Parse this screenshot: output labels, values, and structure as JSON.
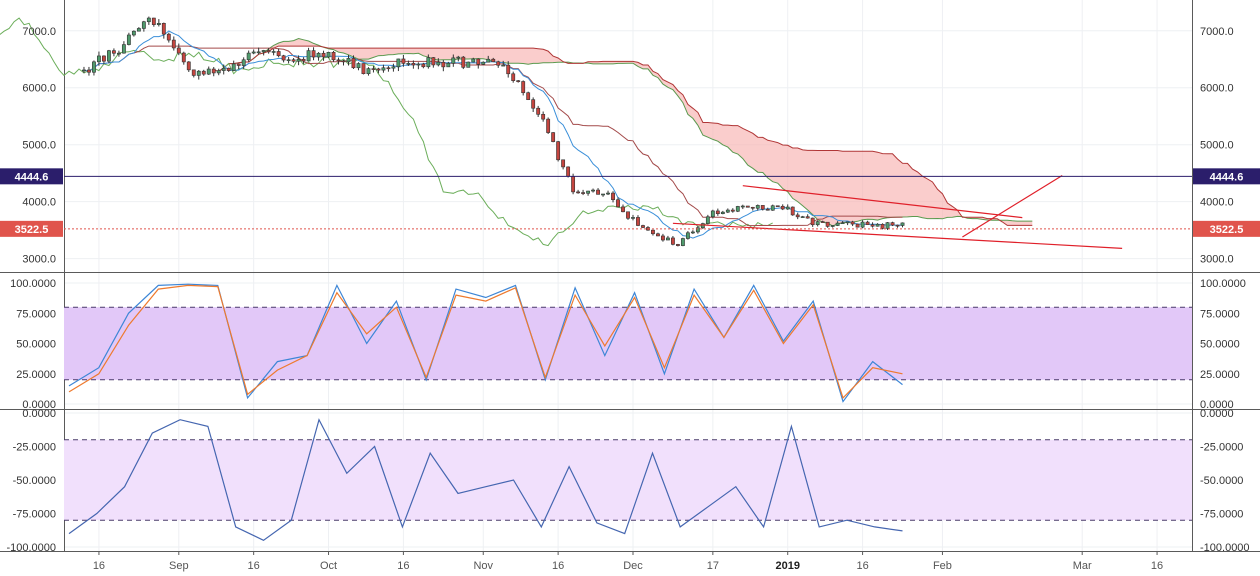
{
  "chart_data": [
    {
      "type": "candlestick",
      "panel": "price",
      "ylim": [
        2800,
        7400
      ],
      "yticks": [
        "7000.0",
        "6000.0",
        "5000.0",
        "4000.0",
        "3000.0"
      ],
      "ytick_values": [
        7000,
        6000,
        5000,
        4000,
        3000
      ],
      "price_labels": [
        {
          "label": "4444.6",
          "value": 4444.6,
          "color": "#2b1e6b",
          "style": "solid-line"
        },
        {
          "label": "3522.5",
          "value": 3522.5,
          "color": "#e0544c",
          "style": "dotted-line"
        }
      ],
      "ohlc_anchors": {
        "dates": [
          "2018-08-13",
          "2018-08-20",
          "2018-08-27",
          "2018-09-03",
          "2018-09-10",
          "2018-09-17",
          "2018-09-24",
          "2018-10-01",
          "2018-10-08",
          "2018-10-15",
          "2018-10-22",
          "2018-10-29",
          "2018-11-05",
          "2018-11-12",
          "2018-11-19",
          "2018-11-26",
          "2018-12-03",
          "2018-12-10",
          "2018-12-17",
          "2018-12-24",
          "2018-12-31",
          "2019-01-07",
          "2019-01-14",
          "2019-01-21"
        ],
        "close": [
          6300,
          6700,
          7200,
          6300,
          6350,
          6600,
          6550,
          6600,
          6300,
          6450,
          6450,
          6450,
          6400,
          5600,
          4200,
          4100,
          3500,
          3250,
          3800,
          3900,
          3900,
          3600,
          3600,
          3560
        ]
      },
      "colors": {
        "up": "#4f9a6c",
        "down": "#c4453f",
        "cloud_bear": "#f7b2b0",
        "cloud_bull": "#b3dbb3",
        "trendlines": "#e0202a"
      }
    },
    {
      "type": "line",
      "panel": "stochastic",
      "ylim": [
        0,
        100
      ],
      "yticks": [
        "100.0000",
        "75.0000",
        "50.0000",
        "25.0000",
        "0.0000"
      ],
      "ytick_values": [
        100,
        75,
        50,
        25,
        0
      ],
      "band": [
        20,
        80
      ],
      "band_color": "#e2c8f8",
      "series": [
        {
          "color": "#3d86d6",
          "values": [
            15,
            30,
            75,
            98,
            99,
            98,
            5,
            35,
            40,
            98,
            50,
            85,
            20,
            95,
            88,
            98,
            20,
            96,
            40,
            92,
            25,
            95,
            55,
            98,
            52,
            85,
            2,
            35,
            16
          ]
        },
        {
          "color": "#ee7a2e",
          "values": [
            10,
            25,
            65,
            95,
            98,
            97,
            8,
            28,
            40,
            92,
            58,
            80,
            22,
            90,
            85,
            96,
            22,
            90,
            48,
            88,
            30,
            90,
            55,
            94,
            50,
            82,
            5,
            30,
            25
          ]
        }
      ]
    },
    {
      "type": "line",
      "panel": "williams_r",
      "ylim": [
        -100,
        0
      ],
      "yticks": [
        "0.0000",
        "-25.0000",
        "-50.0000",
        "-75.0000",
        "-100.0000"
      ],
      "ytick_values": [
        0,
        -25,
        -50,
        -75,
        -100
      ],
      "band": [
        -80,
        -20
      ],
      "band_color": "#f1e0fc",
      "series": [
        {
          "color": "#4566b0",
          "values": [
            -90,
            -75,
            -55,
            -15,
            -5,
            -10,
            -85,
            -95,
            -80,
            -5,
            -45,
            -25,
            -85,
            -30,
            -60,
            -55,
            -50,
            -85,
            -40,
            -82,
            -90,
            -30,
            -85,
            -70,
            -55,
            -85,
            -10,
            -85,
            -80,
            -85,
            -88
          ]
        }
      ]
    }
  ],
  "x_axis": {
    "labels": [
      {
        "text": "16",
        "date": "2018-08-16"
      },
      {
        "text": "Sep",
        "date": "2018-09-01"
      },
      {
        "text": "16",
        "date": "2018-09-16"
      },
      {
        "text": "Oct",
        "date": "2018-10-01"
      },
      {
        "text": "16",
        "date": "2018-10-16"
      },
      {
        "text": "Nov",
        "date": "2018-11-01"
      },
      {
        "text": "16",
        "date": "2018-11-16"
      },
      {
        "text": "Dec",
        "date": "2018-12-01"
      },
      {
        "text": "17",
        "date": "2018-12-17"
      },
      {
        "text": "2019",
        "date": "2019-01-01",
        "bold": true
      },
      {
        "text": "16",
        "date": "2019-01-16"
      },
      {
        "text": "Feb",
        "date": "2019-02-01"
      },
      {
        "text": "Mar",
        "date": "2019-03-01"
      },
      {
        "text": "16",
        "date": "2019-03-16"
      }
    ]
  }
}
